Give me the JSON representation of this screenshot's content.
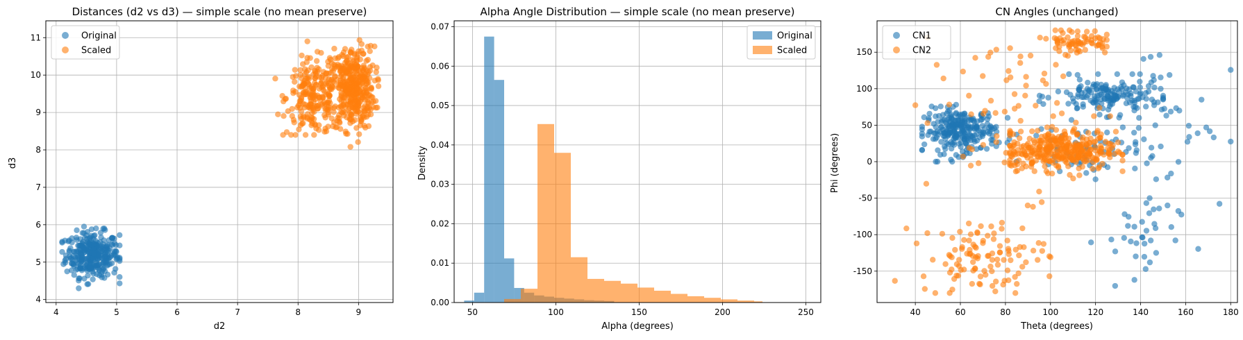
{
  "colors": {
    "original": "#1f77b4",
    "scaled": "#ff7f0e",
    "grid": "#b0b0b0",
    "axis": "#000000"
  },
  "chart_data": [
    {
      "type": "scatter",
      "title": "Distances (d2 vs d3)  —  simple scale (no mean preserve)",
      "xlabel": "d2",
      "ylabel": "d3",
      "xlim": [
        3.83,
        9.57
      ],
      "ylim": [
        3.92,
        11.45
      ],
      "xticks": [
        4,
        5,
        6,
        7,
        8,
        9
      ],
      "yticks": [
        4,
        5,
        6,
        7,
        8,
        9,
        10,
        11
      ],
      "grid": true,
      "legend_position": "upper-left",
      "series": [
        {
          "name": "Original",
          "color": "#1f77b4",
          "alpha": 0.6,
          "clusters": [
            {
              "cx": 4.6,
              "cy": 5.2,
              "sx": 0.22,
              "sy": 0.3,
              "n": 320,
              "xmin": 4.1,
              "xmax": 5.05,
              "ymin": 4.3,
              "ymax": 6.0
            }
          ]
        },
        {
          "name": "Scaled",
          "color": "#ff7f0e",
          "alpha": 0.6,
          "clusters": [
            {
              "cx": 8.25,
              "cy": 9.4,
              "sx": 0.22,
              "sy": 0.5,
              "n": 220,
              "xmin": 7.5,
              "xmax": 8.7,
              "ymin": 8.4,
              "ymax": 10.9
            },
            {
              "cx": 8.9,
              "cy": 9.65,
              "sx": 0.18,
              "sy": 0.55,
              "n": 420,
              "xmin": 8.5,
              "xmax": 9.35,
              "ymin": 7.9,
              "ymax": 11.1
            }
          ]
        }
      ]
    },
    {
      "type": "histogram",
      "title": "Alpha Angle Distribution  —  simple scale (no mean preserve)",
      "xlabel": "Alpha (degrees)",
      "ylabel": "Density",
      "xlim": [
        39,
        259
      ],
      "ylim": [
        0,
        0.0715
      ],
      "xticks": [
        50,
        100,
        150,
        200,
        250
      ],
      "yticks": [
        0.0,
        0.01,
        0.02,
        0.03,
        0.04,
        0.05,
        0.06,
        0.07
      ],
      "ytick_labels": [
        "0.00",
        "0.01",
        "0.02",
        "0.03",
        "0.04",
        "0.05",
        "0.06",
        "0.07"
      ],
      "grid": true,
      "legend_position": "upper-right",
      "series": [
        {
          "name": "Original",
          "color": "#1f77b4",
          "alpha": 0.6,
          "bin_edges": [
            45,
            51,
            57,
            63,
            69,
            75,
            81,
            87,
            93,
            99,
            105,
            111,
            117,
            123,
            129,
            135
          ],
          "density": [
            0.0005,
            0.0025,
            0.0675,
            0.0565,
            0.0112,
            0.0037,
            0.0025,
            0.0018,
            0.0015,
            0.0012,
            0.001,
            0.0008,
            0.0006,
            0.0005,
            0.0004
          ]
        },
        {
          "name": "Scaled",
          "color": "#ff7f0e",
          "alpha": 0.6,
          "bin_edges": [
            69,
            79,
            89,
            99,
            109,
            119,
            129,
            139,
            149,
            159,
            169,
            179,
            189,
            199,
            209,
            219,
            224
          ],
          "density": [
            0.0009,
            0.0035,
            0.0453,
            0.038,
            0.0115,
            0.006,
            0.0055,
            0.0048,
            0.0038,
            0.003,
            0.0022,
            0.0016,
            0.0012,
            0.0008,
            0.0005,
            0.0003
          ]
        }
      ]
    },
    {
      "type": "scatter",
      "title": "CN Angles (unchanged)",
      "xlabel": "Theta (degrees)",
      "ylabel": "Phi (degrees)",
      "xlim": [
        23,
        183
      ],
      "ylim": [
        -193,
        193
      ],
      "xticks": [
        40,
        60,
        80,
        100,
        120,
        140,
        160,
        180
      ],
      "yticks": [
        -150,
        -100,
        -50,
        0,
        50,
        100,
        150
      ],
      "grid": true,
      "legend_position": "upper-left",
      "series": [
        {
          "name": "CN1",
          "color": "#1f77b4",
          "alpha": 0.6,
          "clusters": [
            {
              "cx": 60,
              "cy": 42,
              "sx": 8,
              "sy": 15,
              "n": 260,
              "xmin": 43,
              "xmax": 82,
              "ymin": 0,
              "ymax": 105
            },
            {
              "cx": 126,
              "cy": 90,
              "sx": 12,
              "sy": 12,
              "n": 160,
              "xmin": 95,
              "xmax": 150,
              "ymin": 55,
              "ymax": 120
            },
            {
              "cx": 115,
              "cy": 18,
              "sx": 12,
              "sy": 15,
              "n": 60,
              "xmin": 85,
              "xmax": 145,
              "ymin": -30,
              "ymax": 60
            },
            {
              "cx": 150,
              "cy": 60,
              "sx": 15,
              "sy": 55,
              "n": 45,
              "xmin": 120,
              "xmax": 180,
              "ymin": -60,
              "ymax": 170
            },
            {
              "cx": 137,
              "cy": -110,
              "sx": 10,
              "sy": 35,
              "n": 35,
              "xmin": 118,
              "xmax": 175,
              "ymin": -175,
              "ymax": -50
            }
          ]
        },
        {
          "name": "CN2",
          "color": "#ff7f0e",
          "alpha": 0.6,
          "clusters": [
            {
              "cx": 105,
              "cy": 15,
              "sx": 12,
              "sy": 13,
              "n": 330,
              "xmin": 82,
              "xmax": 132,
              "ymin": -25,
              "ymax": 60
            },
            {
              "cx": 112,
              "cy": 165,
              "sx": 7,
              "sy": 9,
              "n": 70,
              "xmin": 98,
              "xmax": 125,
              "ymin": 145,
              "ymax": 180
            },
            {
              "cx": 70,
              "cy": -130,
              "sx": 14,
              "sy": 25,
              "n": 110,
              "xmin": 27,
              "xmax": 100,
              "ymin": -180,
              "ymax": -60
            },
            {
              "cx": 85,
              "cy": 60,
              "sx": 20,
              "sy": 55,
              "n": 90,
              "xmin": 40,
              "xmax": 130,
              "ymin": -60,
              "ymax": 170
            }
          ]
        }
      ]
    }
  ]
}
